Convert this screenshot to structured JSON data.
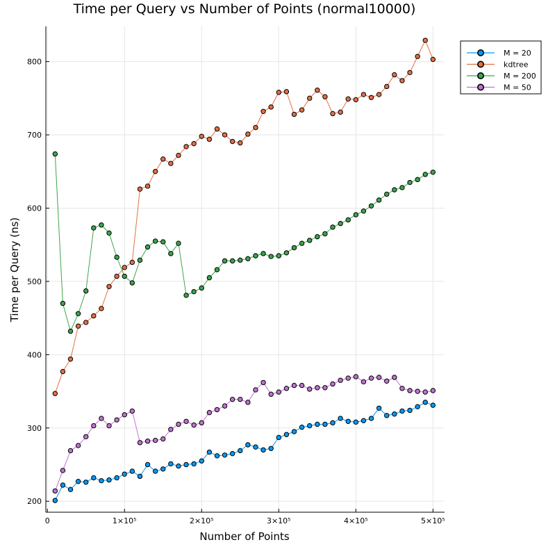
{
  "chart_data": {
    "type": "line",
    "title": "Time per Query vs Number of Points (normal10000)",
    "xlabel": "Number of Points",
    "ylabel": "Time per Query (ns)",
    "xlim": [
      -2000,
      515000
    ],
    "ylim": [
      185,
      848
    ],
    "xticks": [
      {
        "value": 0,
        "label": "0"
      },
      {
        "value": 100000,
        "label": "1×10⁵"
      },
      {
        "value": 200000,
        "label": "2×10⁵"
      },
      {
        "value": 300000,
        "label": "3×10⁵"
      },
      {
        "value": 400000,
        "label": "4×10⁵"
      },
      {
        "value": 500000,
        "label": "5×10⁵"
      }
    ],
    "yticks": [
      {
        "value": 200,
        "label": "200"
      },
      {
        "value": 300,
        "label": "300"
      },
      {
        "value": 400,
        "label": "400"
      },
      {
        "value": 500,
        "label": "500"
      },
      {
        "value": 600,
        "label": "600"
      },
      {
        "value": 700,
        "label": "700"
      },
      {
        "value": 800,
        "label": "800"
      }
    ],
    "grid": true,
    "legend_position": "top-right",
    "x": [
      10000,
      20000,
      30000,
      40000,
      50000,
      60000,
      70000,
      80000,
      90000,
      100000,
      110000,
      120000,
      130000,
      140000,
      150000,
      160000,
      170000,
      180000,
      190000,
      200000,
      210000,
      220000,
      230000,
      240000,
      250000,
      260000,
      270000,
      280000,
      290000,
      300000,
      310000,
      320000,
      330000,
      340000,
      350000,
      360000,
      370000,
      380000,
      390000,
      400000,
      410000,
      420000,
      430000,
      440000,
      450000,
      460000,
      470000,
      480000,
      490000,
      500000
    ],
    "series": [
      {
        "name": "M = 20",
        "color": "#009af9",
        "values": [
          201,
          222,
          216,
          227,
          226,
          232,
          228,
          229,
          232,
          237,
          241,
          234,
          250,
          241,
          244,
          251,
          248,
          250,
          251,
          255,
          267,
          262,
          263,
          265,
          269,
          277,
          274,
          270,
          272,
          287,
          291,
          295,
          301,
          303,
          305,
          305,
          307,
          313,
          309,
          308,
          310,
          313,
          327,
          317,
          319,
          323,
          324,
          329,
          335,
          331
        ]
      },
      {
        "name": "kdtree",
        "color": "#e26f46",
        "values": [
          347,
          377,
          394,
          439,
          444,
          453,
          463,
          493,
          507,
          519,
          526,
          626,
          630,
          650,
          667,
          661,
          672,
          684,
          688,
          698,
          694,
          708,
          700,
          691,
          689,
          701,
          710,
          732,
          738,
          758,
          759,
          728,
          734,
          750,
          761,
          752,
          729,
          731,
          749,
          748,
          755,
          751,
          755,
          766,
          782,
          774,
          785,
          807,
          829,
          803
        ]
      },
      {
        "name": "M = 200",
        "color": "#3da44d",
        "values": [
          674,
          470,
          432,
          456,
          487,
          573,
          577,
          566,
          533,
          507,
          498,
          529,
          547,
          555,
          554,
          538,
          552,
          481,
          486,
          491,
          505,
          516,
          528,
          528,
          529,
          531,
          535,
          538,
          534,
          535,
          539,
          546,
          552,
          556,
          561,
          565,
          574,
          579,
          584,
          591,
          596,
          603,
          611,
          619,
          625,
          628,
          635,
          639,
          646,
          649
        ]
      },
      {
        "name": "M = 50",
        "color": "#c271d2",
        "values": [
          214,
          242,
          269,
          276,
          288,
          303,
          313,
          303,
          311,
          318,
          323,
          280,
          282,
          283,
          285,
          298,
          305,
          309,
          304,
          307,
          321,
          325,
          330,
          339,
          339,
          335,
          352,
          362,
          346,
          349,
          354,
          358,
          358,
          353,
          355,
          355,
          360,
          365,
          368,
          370,
          363,
          368,
          369,
          364,
          369,
          354,
          351,
          350,
          349,
          351
        ]
      }
    ]
  }
}
